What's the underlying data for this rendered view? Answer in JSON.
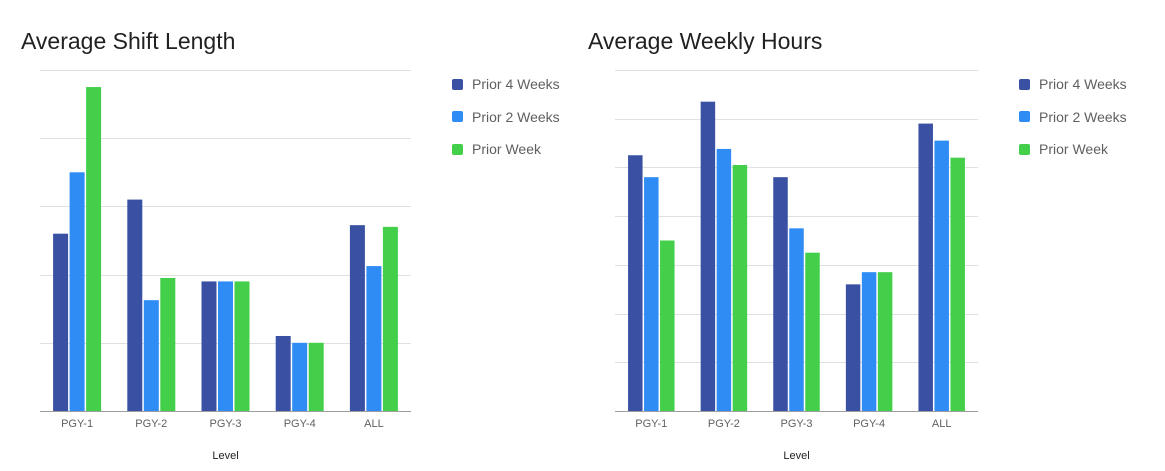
{
  "colors": {
    "prior4": "#3a51a3",
    "prior2": "#2f8cf4",
    "prior1": "#43cf4a",
    "grid": "#e0e0e0",
    "axis": "#9e9e9e"
  },
  "chart_data": [
    {
      "type": "bar",
      "title": "Average Shift Length",
      "xlabel": "Level",
      "ylabel": "",
      "ylim": [
        0,
        10
      ],
      "gridlines": 5,
      "legend_position": "right",
      "categories": [
        "PGY-1",
        "PGY-2",
        "PGY-3",
        "PGY-4",
        "ALL"
      ],
      "series": [
        {
          "name": "Prior 4 Weeks",
          "color_key": "prior4",
          "values": [
            5.2,
            6.2,
            3.8,
            2.2,
            5.45
          ]
        },
        {
          "name": "Prior 2 Weeks",
          "color_key": "prior2",
          "values": [
            7.0,
            3.25,
            3.8,
            2.0,
            4.25
          ]
        },
        {
          "name": "Prior Week",
          "color_key": "prior1",
          "values": [
            9.5,
            3.9,
            3.8,
            2.0,
            5.4
          ]
        }
      ]
    },
    {
      "type": "bar",
      "title": "Average Weekly Hours",
      "xlabel": "Level",
      "ylabel": "",
      "ylim": [
        0,
        70
      ],
      "gridlines": 7,
      "legend_position": "right",
      "categories": [
        "PGY-1",
        "PGY-2",
        "PGY-3",
        "PGY-4",
        "ALL"
      ],
      "series": [
        {
          "name": "Prior 4 Weeks",
          "color_key": "prior4",
          "values": [
            52.5,
            63.5,
            48.0,
            26.0,
            59.0
          ]
        },
        {
          "name": "Prior 2 Weeks",
          "color_key": "prior2",
          "values": [
            48.0,
            53.8,
            37.5,
            28.5,
            55.5
          ]
        },
        {
          "name": "Prior Week",
          "color_key": "prior1",
          "values": [
            35.0,
            50.5,
            32.5,
            28.5,
            52.0
          ]
        }
      ]
    }
  ]
}
